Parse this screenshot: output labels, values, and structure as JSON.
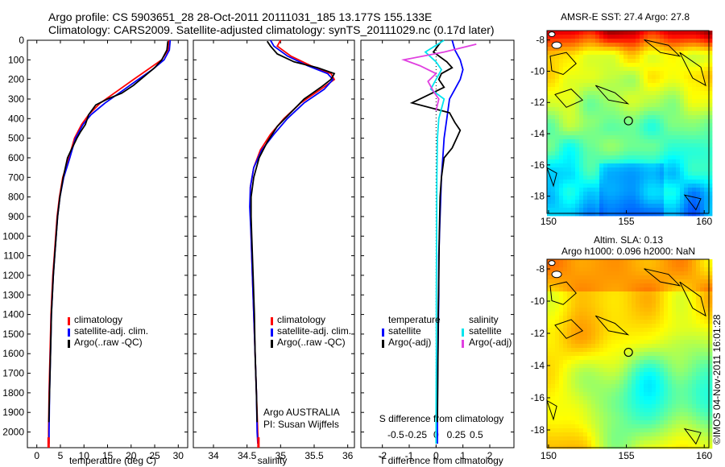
{
  "header": {
    "title_line1": "Argo profile: CS 5903651_28 28-Oct-2011 20111031_185 13.177S 155.133E",
    "title_line2": "Climatology: CARS2009. Satellite-adjusted climatology: synTS_20111029.nc (0.17d later)"
  },
  "colors": {
    "climatology": "#ff0000",
    "satellite": "#0000ff",
    "argo": "#000000",
    "salinity_satellite": "#00e5ee",
    "salinity_argo": "#e040e0"
  },
  "chart_data": [
    {
      "type": "line",
      "name": "temperature",
      "xlabel": "temperature (deg C)",
      "ylabel": "",
      "xlim": [
        -2,
        32
      ],
      "ylim": [
        2080,
        0
      ],
      "xticks": [
        0,
        5,
        10,
        15,
        20,
        25,
        30
      ],
      "xtick_labels": [
        "0",
        "5",
        "10",
        "15",
        "20",
        "25",
        "30"
      ],
      "yticks": [
        0,
        100,
        200,
        300,
        400,
        500,
        600,
        700,
        800,
        900,
        1000,
        1100,
        1200,
        1300,
        1400,
        1500,
        1600,
        1700,
        1800,
        1900,
        2000
      ],
      "ytick_labels": [
        "0",
        "100",
        "200",
        "300",
        "400",
        "500",
        "600",
        "700",
        "800",
        "900",
        "1000",
        "1100",
        "1200",
        "1300",
        "1400",
        "1500",
        "1600",
        "1700",
        "1800",
        "1900",
        "2000"
      ],
      "legend": [
        "climatology",
        "satellite-adj. clim.",
        "Argo(..raw -QC)"
      ],
      "series": [
        {
          "name": "climatology",
          "color": "climatology",
          "points": [
            [
              28,
              0
            ],
            [
              27.8,
              50
            ],
            [
              26.5,
              100
            ],
            [
              23.5,
              150
            ],
            [
              20.5,
              200
            ],
            [
              17,
              260
            ],
            [
              13.5,
              320
            ],
            [
              11,
              380
            ],
            [
              9.5,
              430
            ],
            [
              8,
              500
            ],
            [
              6.8,
              600
            ],
            [
              5.5,
              700
            ],
            [
              4.8,
              800
            ],
            [
              4.3,
              900
            ],
            [
              4,
              1000
            ],
            [
              3.7,
              1100
            ],
            [
              3.4,
              1200
            ],
            [
              3.2,
              1300
            ],
            [
              3,
              1400
            ],
            [
              2.9,
              1500
            ],
            [
              2.8,
              1600
            ],
            [
              2.7,
              1700
            ],
            [
              2.6,
              1800
            ],
            [
              2.55,
              1900
            ],
            [
              2.5,
              2000
            ],
            [
              2.5,
              2060
            ]
          ]
        },
        {
          "name": "satellite-adj. clim.",
          "color": "satellite",
          "points": [
            [
              28.3,
              0
            ],
            [
              28.1,
              50
            ],
            [
              27,
              100
            ],
            [
              24.5,
              150
            ],
            [
              21.5,
              200
            ],
            [
              18,
              260
            ],
            [
              14.5,
              320
            ],
            [
              11.5,
              380
            ],
            [
              9.8,
              430
            ],
            [
              8.2,
              500
            ],
            [
              7,
              600
            ],
            [
              5.7,
              700
            ],
            [
              4.9,
              800
            ],
            [
              4.4,
              900
            ],
            [
              4.1,
              1000
            ],
            [
              3.8,
              1100
            ],
            [
              3.5,
              1200
            ],
            [
              3.3,
              1300
            ],
            [
              3.1,
              1400
            ],
            [
              3,
              1500
            ],
            [
              2.9,
              1600
            ],
            [
              2.8,
              1700
            ],
            [
              2.7,
              1800
            ],
            [
              2.65,
              1900
            ],
            [
              2.6,
              2000
            ],
            [
              2.6,
              2060
            ]
          ]
        },
        {
          "name": "Argo",
          "color": "argo",
          "points": [
            [
              27.8,
              5
            ],
            [
              27.6,
              50
            ],
            [
              26.5,
              100
            ],
            [
              25,
              140
            ],
            [
              23,
              180
            ],
            [
              20.5,
              230
            ],
            [
              18,
              270
            ],
            [
              15,
              300
            ],
            [
              12.5,
              330
            ],
            [
              11,
              380
            ],
            [
              10.3,
              430
            ],
            [
              9.2,
              470
            ],
            [
              8.5,
              500
            ],
            [
              7.3,
              560
            ],
            [
              6.5,
              600
            ],
            [
              5.6,
              700
            ],
            [
              4.9,
              800
            ],
            [
              4.4,
              900
            ],
            [
              4.1,
              1000
            ],
            [
              3.8,
              1100
            ],
            [
              3.5,
              1200
            ],
            [
              3.3,
              1300
            ],
            [
              3.1,
              1400
            ],
            [
              3,
              1500
            ],
            [
              2.9,
              1600
            ],
            [
              2.8,
              1700
            ],
            [
              2.7,
              1800
            ],
            [
              2.6,
              1900
            ],
            [
              2.55,
              1950
            ]
          ]
        }
      ]
    },
    {
      "type": "line",
      "name": "salinity",
      "xlabel": "salinity",
      "xlim": [
        33.7,
        36.1
      ],
      "ylim": [
        2080,
        0
      ],
      "xticks": [
        34,
        34.5,
        35,
        35.5,
        36
      ],
      "xtick_labels": [
        "34",
        "34.5",
        "35",
        "35.5",
        "36"
      ],
      "legend": [
        "climatology",
        "satellite-adj. clim.",
        "Argo(..raw -QC)"
      ],
      "annotation_line1": "Argo AUSTRALIA",
      "annotation_line2": "PI: Susan Wijffels",
      "series": [
        {
          "name": "climatology",
          "color": "climatology",
          "points": [
            [
              35.0,
              0
            ],
            [
              34.95,
              30
            ],
            [
              35.15,
              80
            ],
            [
              35.45,
              130
            ],
            [
              35.75,
              170
            ],
            [
              35.8,
              200
            ],
            [
              35.6,
              250
            ],
            [
              35.3,
              320
            ],
            [
              35.05,
              400
            ],
            [
              34.85,
              480
            ],
            [
              34.7,
              560
            ],
            [
              34.6,
              650
            ],
            [
              34.55,
              750
            ],
            [
              34.55,
              850
            ],
            [
              34.56,
              1000
            ],
            [
              34.58,
              1200
            ],
            [
              34.6,
              1400
            ],
            [
              34.62,
              1600
            ],
            [
              34.64,
              1800
            ],
            [
              34.66,
              2000
            ],
            [
              34.67,
              2060
            ]
          ]
        },
        {
          "name": "satellite-adj. clim.",
          "color": "satellite",
          "points": [
            [
              34.85,
              0
            ],
            [
              34.9,
              30
            ],
            [
              35.1,
              80
            ],
            [
              35.4,
              130
            ],
            [
              35.7,
              170
            ],
            [
              35.78,
              200
            ],
            [
              35.65,
              250
            ],
            [
              35.35,
              320
            ],
            [
              35.1,
              400
            ],
            [
              34.9,
              480
            ],
            [
              34.72,
              560
            ],
            [
              34.6,
              650
            ],
            [
              34.55,
              750
            ],
            [
              34.54,
              850
            ],
            [
              34.56,
              1000
            ],
            [
              34.58,
              1200
            ],
            [
              34.6,
              1400
            ],
            [
              34.62,
              1600
            ],
            [
              34.64,
              1800
            ],
            [
              34.65,
              2000
            ],
            [
              34.66,
              2060
            ]
          ]
        },
        {
          "name": "Argo",
          "color": "argo",
          "points": [
            [
              34.8,
              5
            ],
            [
              34.85,
              30
            ],
            [
              34.95,
              70
            ],
            [
              35.2,
              110
            ],
            [
              35.55,
              140
            ],
            [
              35.8,
              170
            ],
            [
              35.75,
              200
            ],
            [
              35.6,
              240
            ],
            [
              35.35,
              300
            ],
            [
              35.15,
              370
            ],
            [
              34.95,
              440
            ],
            [
              34.8,
              520
            ],
            [
              34.68,
              600
            ],
            [
              34.6,
              700
            ],
            [
              34.56,
              800
            ],
            [
              34.56,
              900
            ],
            [
              34.57,
              1000
            ],
            [
              34.59,
              1200
            ],
            [
              34.61,
              1400
            ],
            [
              34.62,
              1600
            ],
            [
              34.64,
              1800
            ],
            [
              34.65,
              1950
            ]
          ]
        }
      ]
    },
    {
      "type": "line",
      "name": "differences",
      "xlabel": "T difference from climatology",
      "xlabel_top": "S difference from climatology",
      "xlim": [
        -2.8,
        2.9
      ],
      "ylim": [
        2080,
        0
      ],
      "xticks": [
        -2,
        -1,
        0,
        1,
        2
      ],
      "xtick_labels": [
        "-2",
        "-1",
        "0",
        "1",
        "2"
      ],
      "top_ticks": [
        -1.5,
        -0.75,
        0,
        0.75,
        1.5
      ],
      "top_tick_labels": [
        "-0.5",
        "-0.25",
        "0",
        "0.25",
        "0.5"
      ],
      "legend_temperature": [
        "temperature",
        "satellite",
        "Argo(-adj)"
      ],
      "legend_salinity": [
        "salinity",
        "satellite",
        "Argo(-adj)"
      ],
      "series": [
        {
          "name": "T satellite",
          "color": "satellite",
          "points": [
            [
              0.6,
              0
            ],
            [
              0.7,
              50
            ],
            [
              0.9,
              100
            ],
            [
              1,
              150
            ],
            [
              0.9,
              200
            ],
            [
              0.7,
              250
            ],
            [
              0.5,
              300
            ],
            [
              0.4,
              400
            ],
            [
              0.3,
              500
            ],
            [
              0.25,
              600
            ],
            [
              0.2,
              700
            ],
            [
              0.15,
              900
            ],
            [
              0.1,
              1100
            ],
            [
              0.1,
              1300
            ],
            [
              0.08,
              1500
            ],
            [
              0.06,
              1700
            ],
            [
              0.05,
              1900
            ],
            [
              0.05,
              2060
            ]
          ]
        },
        {
          "name": "T Argo",
          "color": "argo",
          "points": [
            [
              0.2,
              5
            ],
            [
              -0.1,
              60
            ],
            [
              0.4,
              110
            ],
            [
              0.6,
              140
            ],
            [
              0.2,
              170
            ],
            [
              0.1,
              200
            ],
            [
              0.3,
              240
            ],
            [
              -0.9,
              320
            ],
            [
              0.5,
              370
            ],
            [
              0.7,
              420
            ],
            [
              0.9,
              460
            ],
            [
              0.8,
              490
            ],
            [
              0.6,
              550
            ],
            [
              0.3,
              600
            ],
            [
              0.2,
              700
            ],
            [
              0.15,
              800
            ],
            [
              0.12,
              1000
            ],
            [
              0.1,
              1200
            ],
            [
              0.08,
              1400
            ],
            [
              0.07,
              1600
            ],
            [
              0.06,
              1800
            ],
            [
              0.05,
              1950
            ]
          ]
        },
        {
          "name": "S satellite",
          "color": "salinity_satellite",
          "points": [
            [
              0.3,
              0
            ],
            [
              -0.4,
              60
            ],
            [
              0,
              110
            ],
            [
              0.2,
              150
            ],
            [
              0,
              200
            ],
            [
              -0.2,
              250
            ],
            [
              0.3,
              300
            ],
            [
              0.2,
              350
            ],
            [
              0.1,
              400
            ],
            [
              0.05,
              500
            ],
            [
              0.03,
              700
            ],
            [
              0.02,
              1000
            ],
            [
              0.01,
              1300
            ],
            [
              0.01,
              1600
            ],
            [
              0,
              1900
            ],
            [
              0,
              2060
            ]
          ]
        },
        {
          "name": "S Argo",
          "color": "salinity_argo",
          "points": [
            [
              1.5,
              20
            ],
            [
              0.3,
              60
            ],
            [
              -1.2,
              100
            ],
            [
              -0.6,
              130
            ],
            [
              0,
              170
            ],
            [
              -0.3,
              210
            ],
            [
              -0.1,
              260
            ],
            [
              0.1,
              300
            ],
            [
              0,
              360
            ]
          ]
        }
      ]
    },
    {
      "type": "heatmap",
      "name": "sst_map",
      "title": "AMSR-E SST: 27.4 Argo: 27.8",
      "xlim": [
        149.9,
        160.3
      ],
      "ylim": [
        -19.1,
        -7.4
      ],
      "xticks": [
        150,
        155,
        160
      ],
      "xtick_labels": [
        "150",
        "155",
        "160"
      ],
      "yticks": [
        -8,
        -10,
        -12,
        -14,
        -16,
        -18
      ],
      "ytick_labels": [
        "-8",
        "-10",
        "-12",
        "-14",
        "-16",
        "-18"
      ],
      "marker": [
        155.133,
        -13.177
      ]
    },
    {
      "type": "heatmap",
      "name": "sla_map",
      "title_line1": "Altim. SLA: 0.13",
      "title_line2": "Argo h1000: 0.096 h2000: NaN",
      "xlim": [
        149.9,
        160.3
      ],
      "ylim": [
        -19.1,
        -7.4
      ],
      "xticks": [
        150,
        155,
        160
      ],
      "xtick_labels": [
        "150",
        "155",
        "160"
      ],
      "yticks": [
        -8,
        -10,
        -12,
        -14,
        -16,
        -18
      ],
      "ytick_labels": [
        "-8",
        "-10",
        "-12",
        "-14",
        "-16",
        "-18"
      ],
      "marker": [
        155.133,
        -13.177
      ],
      "credit": "©IMOS 04-Nov-2011 16:01:28"
    }
  ]
}
